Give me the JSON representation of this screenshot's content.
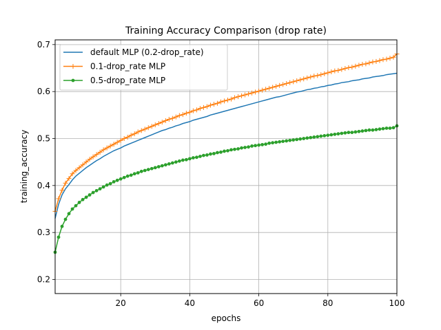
{
  "chart_data": {
    "type": "line",
    "title": "Training Accuracy Comparison (drop rate)",
    "xlabel": "epochs",
    "ylabel": "training_accuracy",
    "xlim": [
      1,
      100
    ],
    "ylim": [
      0.17,
      0.71
    ],
    "xticks": [
      20,
      40,
      60,
      80,
      100
    ],
    "yticks": [
      0.2,
      0.3,
      0.4,
      0.5,
      0.6,
      0.7
    ],
    "grid": true,
    "legend_position": "top-left",
    "series": [
      {
        "name": "default MLP (0.2-drop_rate)",
        "color": "#1f77b4",
        "marker": "none",
        "x_start": 1,
        "x_step": 1,
        "values": [
          0.33,
          0.36,
          0.38,
          0.393,
          0.402,
          0.412,
          0.42,
          0.426,
          0.432,
          0.438,
          0.443,
          0.448,
          0.453,
          0.457,
          0.462,
          0.466,
          0.47,
          0.474,
          0.477,
          0.48,
          0.484,
          0.487,
          0.49,
          0.493,
          0.496,
          0.499,
          0.502,
          0.505,
          0.508,
          0.511,
          0.514,
          0.517,
          0.519,
          0.522,
          0.524,
          0.527,
          0.529,
          0.532,
          0.534,
          0.536,
          0.539,
          0.541,
          0.543,
          0.545,
          0.547,
          0.55,
          0.552,
          0.554,
          0.556,
          0.558,
          0.56,
          0.562,
          0.564,
          0.566,
          0.568,
          0.57,
          0.572,
          0.574,
          0.576,
          0.578,
          0.58,
          0.582,
          0.584,
          0.586,
          0.588,
          0.589,
          0.591,
          0.593,
          0.595,
          0.597,
          0.599,
          0.6,
          0.602,
          0.604,
          0.605,
          0.607,
          0.608,
          0.61,
          0.611,
          0.613,
          0.614,
          0.616,
          0.617,
          0.619,
          0.62,
          0.621,
          0.623,
          0.624,
          0.625,
          0.627,
          0.628,
          0.629,
          0.631,
          0.632,
          0.633,
          0.634,
          0.636,
          0.637,
          0.638,
          0.639
        ]
      },
      {
        "name": "0.1-drop_rate MLP",
        "color": "#ff7f0e",
        "marker": "plus",
        "x_start": 1,
        "x_step": 1,
        "values": [
          0.345,
          0.372,
          0.39,
          0.405,
          0.415,
          0.425,
          0.432,
          0.438,
          0.444,
          0.45,
          0.456,
          0.461,
          0.466,
          0.471,
          0.476,
          0.48,
          0.484,
          0.488,
          0.492,
          0.496,
          0.5,
          0.503,
          0.507,
          0.51,
          0.514,
          0.517,
          0.52,
          0.523,
          0.526,
          0.529,
          0.532,
          0.535,
          0.538,
          0.541,
          0.543,
          0.546,
          0.549,
          0.551,
          0.554,
          0.556,
          0.559,
          0.561,
          0.564,
          0.566,
          0.568,
          0.571,
          0.573,
          0.575,
          0.578,
          0.58,
          0.582,
          0.584,
          0.587,
          0.589,
          0.591,
          0.593,
          0.595,
          0.597,
          0.599,
          0.601,
          0.603,
          0.605,
          0.607,
          0.609,
          0.611,
          0.613,
          0.615,
          0.617,
          0.619,
          0.621,
          0.623,
          0.625,
          0.627,
          0.629,
          0.631,
          0.633,
          0.634,
          0.636,
          0.638,
          0.64,
          0.642,
          0.644,
          0.645,
          0.647,
          0.649,
          0.651,
          0.652,
          0.654,
          0.656,
          0.658,
          0.659,
          0.661,
          0.663,
          0.664,
          0.666,
          0.668,
          0.669,
          0.671,
          0.673,
          0.68
        ]
      },
      {
        "name": "0.5-drop_rate MLP",
        "color": "#2ca02c",
        "marker": "dot",
        "x_start": 1,
        "x_step": 1,
        "values": [
          0.258,
          0.29,
          0.313,
          0.328,
          0.34,
          0.35,
          0.357,
          0.364,
          0.37,
          0.375,
          0.38,
          0.385,
          0.389,
          0.393,
          0.397,
          0.401,
          0.404,
          0.408,
          0.411,
          0.414,
          0.417,
          0.42,
          0.422,
          0.425,
          0.427,
          0.43,
          0.432,
          0.434,
          0.436,
          0.438,
          0.44,
          0.442,
          0.444,
          0.446,
          0.448,
          0.45,
          0.452,
          0.454,
          0.455,
          0.457,
          0.459,
          0.46,
          0.462,
          0.464,
          0.465,
          0.467,
          0.468,
          0.47,
          0.471,
          0.473,
          0.474,
          0.476,
          0.477,
          0.478,
          0.48,
          0.481,
          0.482,
          0.484,
          0.485,
          0.486,
          0.487,
          0.488,
          0.49,
          0.491,
          0.492,
          0.493,
          0.494,
          0.495,
          0.496,
          0.497,
          0.498,
          0.499,
          0.5,
          0.501,
          0.502,
          0.503,
          0.504,
          0.505,
          0.506,
          0.507,
          0.508,
          0.509,
          0.51,
          0.511,
          0.512,
          0.513,
          0.513,
          0.514,
          0.515,
          0.516,
          0.517,
          0.518,
          0.518,
          0.519,
          0.52,
          0.521,
          0.522,
          0.522,
          0.523,
          0.527
        ]
      }
    ]
  }
}
